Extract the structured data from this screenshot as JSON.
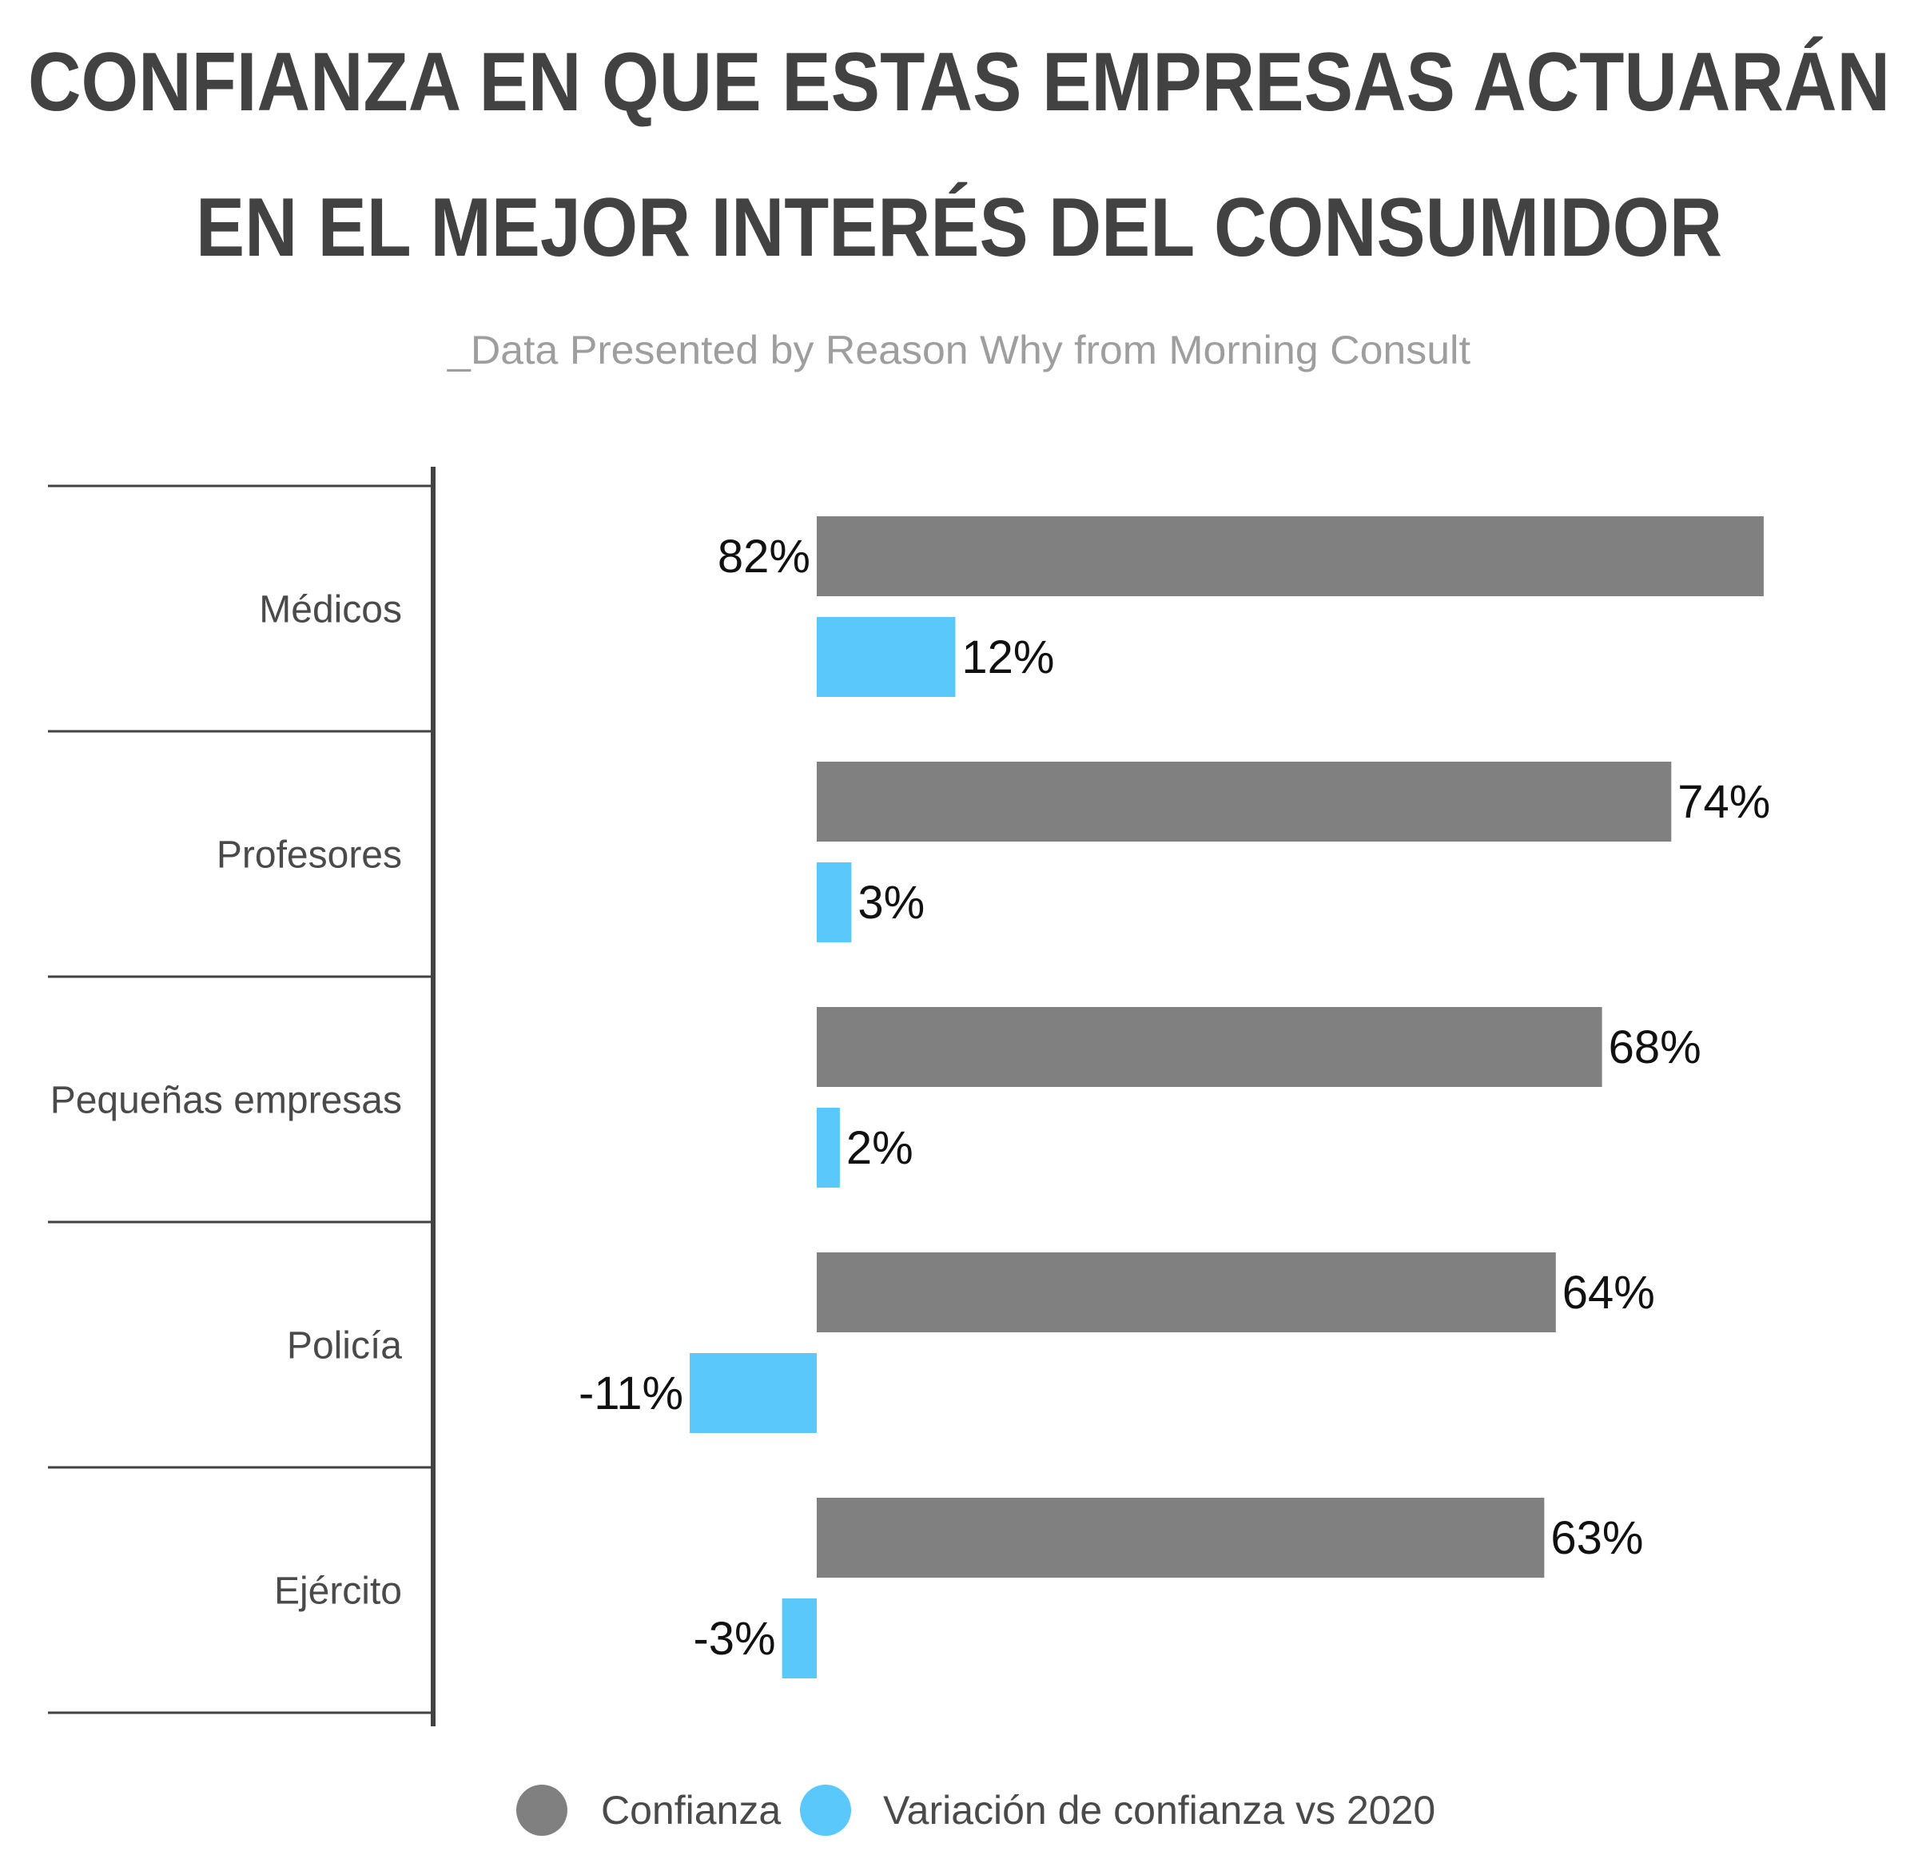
{
  "chart_data": {
    "type": "bar",
    "orientation": "horizontal",
    "title_lines": [
      "CONFIANZA EN QUE ESTAS EMPRESAS ACTUARÁN",
      "EN EL MEJOR INTERÉS DEL CONSUMIDOR"
    ],
    "subtitle": "_Data Presented by Reason Why from Morning Consult",
    "categories": [
      "Médicos",
      "Profesores",
      "Pequeñas empresas",
      "Policía",
      "Ejército"
    ],
    "series": [
      {
        "name": "Confianza",
        "color": "#808080",
        "values": [
          82,
          74,
          68,
          64,
          63
        ],
        "labels": [
          "82%",
          "74%",
          "68%",
          "64%",
          "63%"
        ]
      },
      {
        "name": "Variación de confianza vs 2020",
        "color": "#5ac8fa",
        "values": [
          12,
          3,
          2,
          -11,
          -3
        ],
        "labels": [
          "12%",
          "3%",
          "2%",
          "-11%",
          "-3%"
        ]
      }
    ],
    "xlim": [
      -11,
      82
    ],
    "legend_position": "bottom",
    "grid": false
  }
}
